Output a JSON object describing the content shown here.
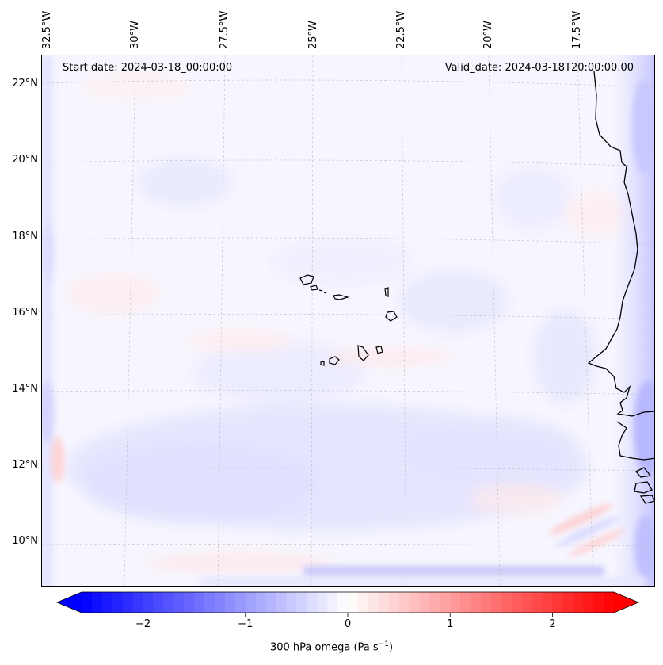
{
  "map": {
    "lon_labels": [
      "32.5°W",
      "30°W",
      "27.5°W",
      "25°W",
      "22.5°W",
      "20°W",
      "17.5°W"
    ],
    "lat_labels": [
      "22°N",
      "20°N",
      "18°N",
      "16°N",
      "14°N",
      "12°N",
      "10°N"
    ],
    "start_date": "Start date: 2024-03-18_00:00:00",
    "valid_date": "Valid_date: 2024-03-18T20:00:00.00",
    "variable": "300 hPa omega",
    "gridlines": true,
    "coastline_color": "#000000"
  },
  "colorbar": {
    "ticks": [
      "−2",
      "−1",
      "0",
      "1",
      "2"
    ],
    "tick_values": [
      -2,
      -1,
      0,
      1,
      2
    ],
    "range": [
      -2.6,
      2.6
    ],
    "extend": "both",
    "colormap": "bwr",
    "label_text": "300 hPa omega (Pa s",
    "label_sup": "−1",
    "label_close": ")"
  },
  "colors": {
    "negative": "#0000ff",
    "neutral": "#ffffff",
    "positive": "#ff0000"
  }
}
